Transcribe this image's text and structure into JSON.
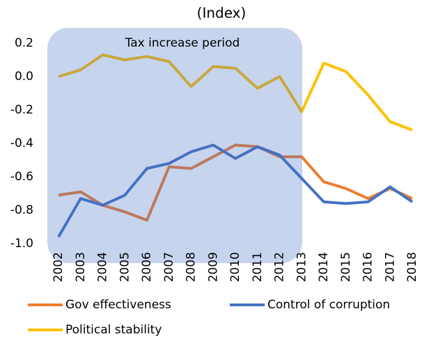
{
  "chart_data": {
    "type": "line",
    "title": "(Index)",
    "annotation": "Tax increase period",
    "categories": [
      "2002",
      "2003",
      "2004",
      "2005",
      "2006",
      "2007",
      "2008",
      "2009",
      "2010",
      "2011",
      "2012",
      "2013",
      "2014",
      "2015",
      "2016",
      "2017",
      "2018"
    ],
    "series": [
      {
        "name": "Gov effectiveness",
        "color": "#ED7D31",
        "values": [
          -0.71,
          -0.69,
          -0.77,
          -0.81,
          -0.86,
          -0.54,
          -0.55,
          -0.48,
          -0.41,
          -0.42,
          -0.48,
          -0.48,
          -0.63,
          -0.67,
          -0.73,
          -0.67,
          -0.73
        ]
      },
      {
        "name": "Control of corruption",
        "color": "#4472C4",
        "values": [
          -0.96,
          -0.73,
          -0.77,
          -0.71,
          -0.55,
          -0.52,
          -0.45,
          -0.41,
          -0.49,
          -0.42,
          -0.47,
          -0.61,
          -0.75,
          -0.76,
          -0.75,
          -0.66,
          -0.75
        ]
      },
      {
        "name": "Political stability",
        "color": "#FFC000",
        "values": [
          0.0,
          0.04,
          0.13,
          0.1,
          0.12,
          0.09,
          -0.06,
          0.06,
          0.05,
          -0.07,
          0.0,
          -0.21,
          0.08,
          0.03,
          -0.11,
          -0.27,
          -0.32
        ]
      }
    ],
    "ylim": [
      -1,
      0.2
    ],
    "yticks": [
      0.2,
      {
        "value": 0,
        "label": "0.0"
      },
      -0.2,
      -0.4,
      -0.6,
      -0.8,
      {
        "value": -1,
        "label": "-1.0"
      }
    ],
    "grid": false
  }
}
